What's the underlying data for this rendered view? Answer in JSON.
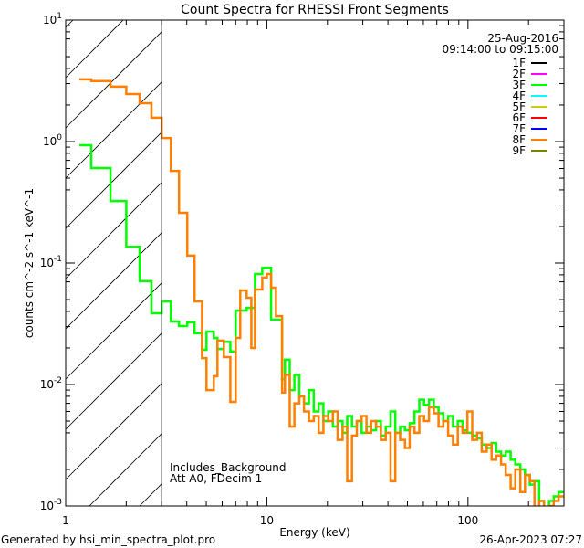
{
  "chart_data": {
    "type": "line",
    "title": "Count Spectra for RHESSI Front Segments",
    "xlabel": "Energy (keV)",
    "ylabel": "counts cm^-2 s^-1 keV^-1",
    "xscale": "log",
    "yscale": "log",
    "xlim": [
      1,
      300
    ],
    "ylim": [
      0.001,
      10
    ],
    "x_ticks": [
      {
        "v": 1,
        "label": "1"
      },
      {
        "v": 10,
        "label": "10"
      },
      {
        "v": 100,
        "label": "100"
      }
    ],
    "y_ticks": [
      {
        "v": 10,
        "base": "10",
        "exp": "1"
      },
      {
        "v": 1,
        "base": "10",
        "exp": "0"
      },
      {
        "v": 0.1,
        "base": "10",
        "exp": "-1"
      },
      {
        "v": 0.01,
        "base": "10",
        "exp": "-2"
      },
      {
        "v": 0.001,
        "base": "10",
        "exp": "-3"
      }
    ],
    "hatched_below_keV": 3,
    "date": "25-Aug-2016",
    "time_range": "09:14:00 to 09:15:00",
    "annotations": [
      "Includes_Background",
      "Att A0, FDecim 1"
    ],
    "legend_position": "top-right",
    "legend": [
      {
        "name": "1F",
        "color": "#000000"
      },
      {
        "name": "2F",
        "color": "#ff00ff"
      },
      {
        "name": "3F",
        "color": "#00ff00"
      },
      {
        "name": "4F",
        "color": "#00ffff"
      },
      {
        "name": "5F",
        "color": "#cccc00"
      },
      {
        "name": "6F",
        "color": "#ff0000"
      },
      {
        "name": "7F",
        "color": "#0000ff"
      },
      {
        "name": "8F",
        "color": "#ff8000"
      },
      {
        "name": "9F",
        "color": "#808000"
      }
    ],
    "series": [
      {
        "name": "3F",
        "color": "#00ff00",
        "edges": [
          1.17,
          1.34,
          1.67,
          2.0,
          2.33,
          2.67,
          3.0,
          3.33,
          3.66,
          4.02,
          4.37,
          4.76,
          5.01,
          5.45,
          5.68,
          6.11,
          6.58,
          7.0,
          7.94,
          8.73,
          9.49,
          10.5,
          11.9,
          12.3,
          13,
          13.7,
          14.5,
          15.3,
          16.2,
          17.1,
          18.1,
          19.1,
          20.2,
          21.3,
          22.5,
          23.8,
          25.1,
          26.5,
          28,
          29.6,
          31.3,
          33,
          34.9,
          36.9,
          39,
          41.2,
          43.5,
          46,
          48.6,
          51.3,
          54.2,
          57.3,
          60.5,
          64,
          67.6,
          71.4,
          75.4,
          79.7,
          84.2,
          89,
          94,
          99.3,
          105,
          111,
          117,
          124,
          131,
          138,
          146,
          154,
          163,
          172,
          182,
          192,
          203,
          214,
          226,
          239,
          253,
          267,
          282,
          298
        ],
        "counts": [
          0.933,
          0.605,
          0.324,
          0.136,
          0.0708,
          0.0386,
          0.0483,
          0.033,
          0.0303,
          0.0325,
          0.0264,
          0.0193,
          0.0273,
          0.0242,
          0.0196,
          0.0225,
          0.0187,
          0.0406,
          0.0428,
          0.0813,
          0.0916,
          0.0342,
          0.011,
          0.016,
          0.009,
          0.012,
          0.008,
          0.007,
          0.009,
          0.006,
          0.007,
          0.005,
          0.006,
          0.0045,
          0.005,
          0.004,
          0.0055,
          0.0045,
          0.005,
          0.004,
          0.0045,
          0.0042,
          0.005,
          0.0038,
          0.0045,
          0.006,
          0.004,
          0.0045,
          0.0042,
          0.0048,
          0.006,
          0.0075,
          0.0068,
          0.0075,
          0.0065,
          0.0058,
          0.005,
          0.0055,
          0.0045,
          0.005,
          0.0042,
          0.004,
          0.0038,
          0.0036,
          0.0032,
          0.003,
          0.0033,
          0.0028,
          0.0026,
          0.0028,
          0.0024,
          0.0022,
          0.002,
          0.0018,
          0.0015,
          0.0016,
          0.0011,
          0.0009,
          0.0011,
          0.0012,
          0.0013
        ]
      },
      {
        "name": "8F",
        "color": "#ff8000",
        "edges": [
          1.17,
          1.34,
          1.67,
          2.0,
          2.33,
          2.67,
          3.0,
          3.33,
          3.66,
          4.02,
          4.37,
          4.76,
          5.01,
          5.45,
          5.68,
          6.11,
          6.58,
          7.0,
          7.38,
          7.94,
          8.37,
          8.73,
          9.49,
          10,
          10.5,
          11.1,
          11.9,
          12.3,
          13,
          13.7,
          14.5,
          15.3,
          16.2,
          17.1,
          18.1,
          19.1,
          20.2,
          21.3,
          22.5,
          23.8,
          25.1,
          26.5,
          28,
          29.6,
          31.3,
          33,
          34.9,
          36.9,
          39,
          41.2,
          43.5,
          46,
          48.6,
          51.3,
          54.2,
          57.3,
          60.5,
          64,
          67.6,
          71.4,
          75.4,
          79.7,
          84.2,
          89,
          94,
          99.3,
          105,
          111,
          117,
          124,
          131,
          138,
          146,
          154,
          163,
          172,
          182,
          192,
          203,
          214,
          226,
          239,
          253,
          267,
          282,
          298
        ],
        "counts": [
          3.25,
          3.15,
          2.83,
          2.46,
          2.07,
          1.57,
          1.07,
          0.574,
          0.259,
          0.115,
          0.0483,
          0.0165,
          0.009,
          0.0117,
          0.023,
          0.0168,
          0.0072,
          0.0242,
          0.0595,
          0.0518,
          0.02,
          0.0605,
          0.0759,
          0.0813,
          0.0627,
          0.0366,
          0.0086,
          0.012,
          0.0045,
          0.007,
          0.008,
          0.006,
          0.005,
          0.0055,
          0.004,
          0.0055,
          0.005,
          0.006,
          0.0035,
          0.0045,
          0.0016,
          0.0038,
          0.005,
          0.0055,
          0.004,
          0.005,
          0.0045,
          0.0035,
          0.004,
          0.0016,
          0.004,
          0.0035,
          0.003,
          0.0045,
          0.004,
          0.0055,
          0.005,
          0.0065,
          0.0058,
          0.0045,
          0.005,
          0.0038,
          0.0032,
          0.0045,
          0.004,
          0.006,
          0.0035,
          0.004,
          0.0028,
          0.0032,
          0.0024,
          0.0026,
          0.0022,
          0.0018,
          0.0014,
          0.002,
          0.0013,
          0.0018,
          0.0016,
          0.0009,
          0.0011,
          0.0009,
          0.001,
          0.0011,
          0.0012
        ]
      }
    ]
  },
  "footer": {
    "generated_by": "Generated by hsi_min_spectra_plot.pro",
    "generated_at": "26-Apr-2023 07:27"
  }
}
